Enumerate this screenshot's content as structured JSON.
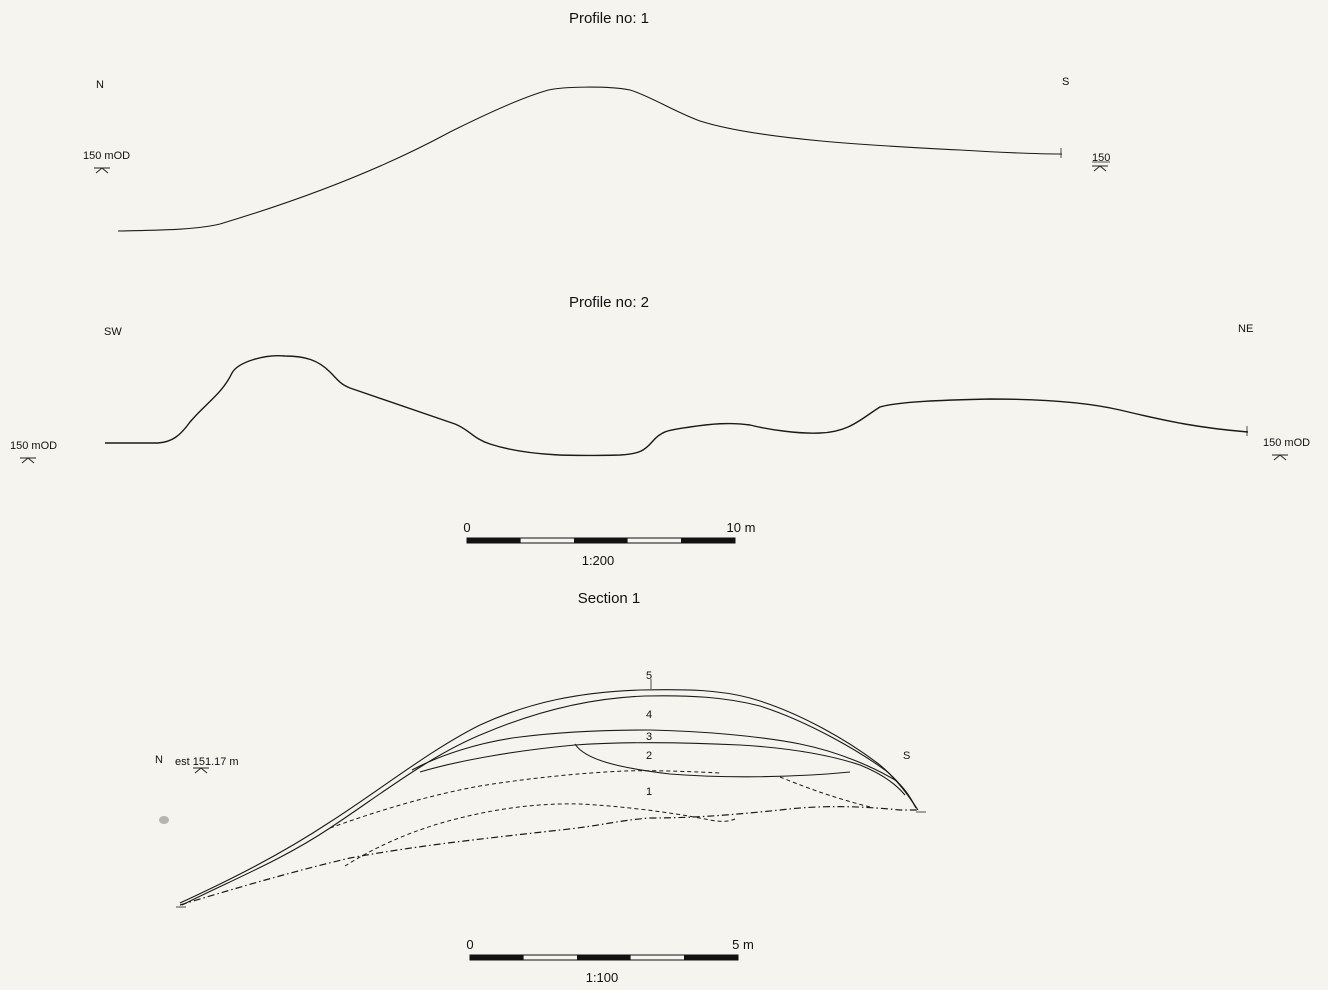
{
  "profile1": {
    "title": "Profile no: 1",
    "left_dir": "N",
    "right_dir": "S",
    "left_datum": "150 mOD",
    "right_datum": "150"
  },
  "profile2": {
    "title": "Profile no: 2",
    "left_dir": "SW",
    "right_dir": "NE",
    "left_datum": "150 mOD",
    "right_datum": "150 mOD"
  },
  "scale1": {
    "start": "0",
    "end": "10 m",
    "ratio": "1:200"
  },
  "section1": {
    "title": "Section 1",
    "left_dir": "N",
    "right_dir": "S",
    "datum": "est 151.17 m",
    "layers": [
      "1",
      "2",
      "3",
      "4",
      "5"
    ]
  },
  "scale2": {
    "start": "0",
    "end": "5 m",
    "ratio": "1:100"
  }
}
